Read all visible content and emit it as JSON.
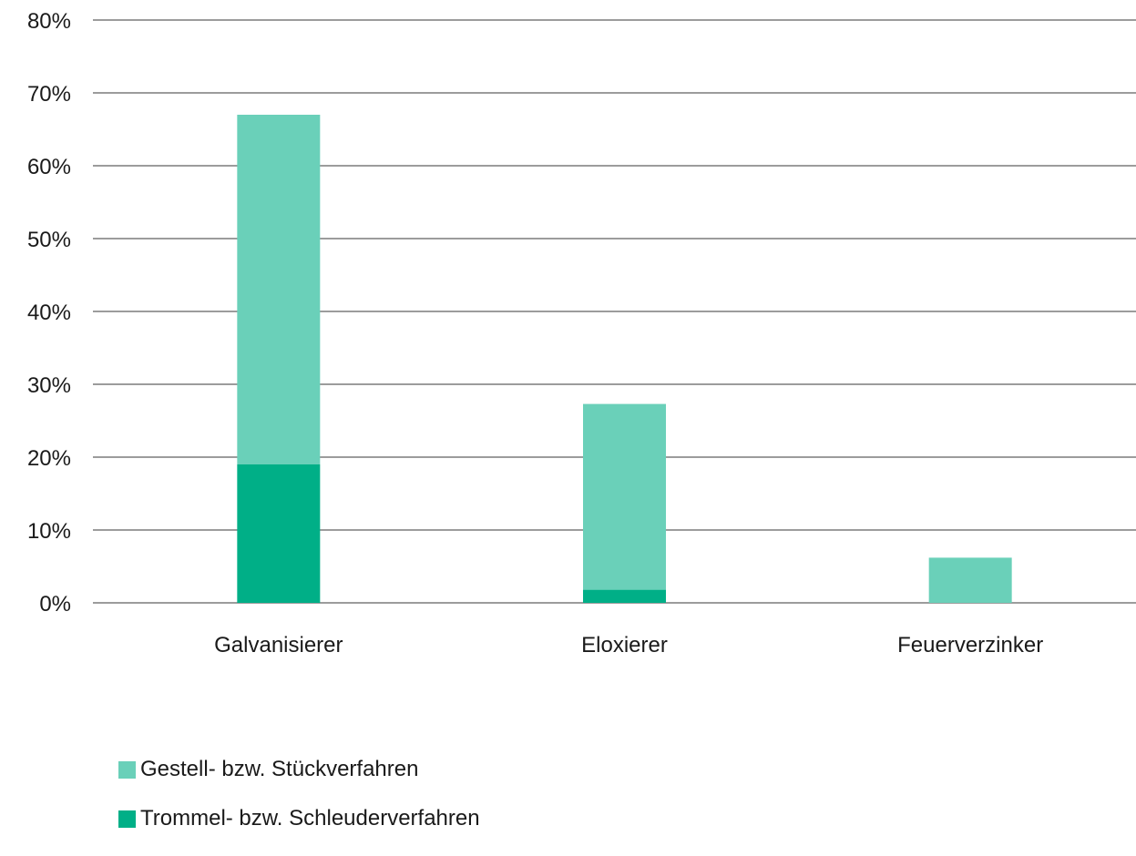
{
  "chart_data": {
    "type": "bar",
    "stacked": true,
    "categories": [
      "Galvanisierer",
      "Eloxierer",
      "Feuerverzinker"
    ],
    "series": [
      {
        "name": "Trommel- bzw. Schleuderverfahren",
        "color": "#00af87",
        "values": [
          19,
          1.8,
          0
        ]
      },
      {
        "name": "Gestell- bzw. Stückverfahren",
        "color": "#6ad0b9",
        "values": [
          48,
          25.5,
          6.2
        ]
      }
    ],
    "yticks": [
      "0%",
      "10%",
      "20%",
      "30%",
      "40%",
      "50%",
      "60%",
      "70%",
      "80%"
    ],
    "ylim": [
      0,
      80
    ],
    "grid": true,
    "legend_position": "bottom-left"
  },
  "legend": {
    "items": [
      {
        "label": "Gestell- bzw. Stückverfahren",
        "color": "#6ad0b9"
      },
      {
        "label": "Trommel- bzw. Schleuderverfahren",
        "color": "#00af87"
      }
    ]
  }
}
